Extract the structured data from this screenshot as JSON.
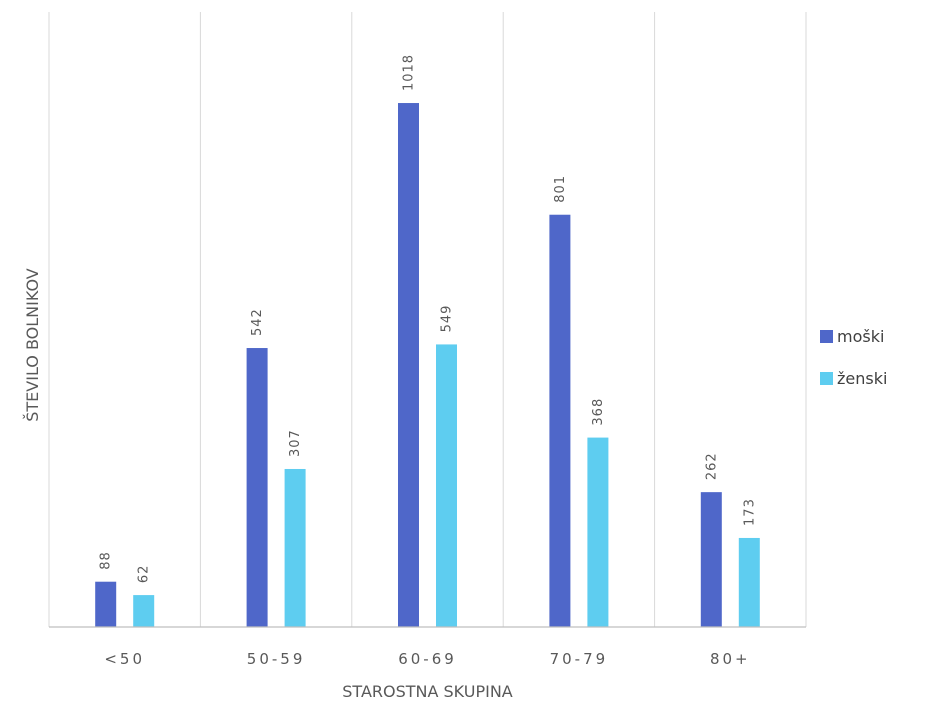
{
  "chart_data": {
    "type": "bar",
    "xlabel": "STAROSTNA SKUPINA",
    "ylabel": "ŠTEVILO BOLNIKOV",
    "categories": [
      "<50",
      "50-59",
      "60-69",
      "70-79",
      "80+"
    ],
    "series": [
      {
        "name": "moški",
        "color": "#4f67c9",
        "values": [
          88,
          542,
          1018,
          801,
          262
        ]
      },
      {
        "name": "ženski",
        "color": "#5ecdf0",
        "values": [
          62,
          307,
          549,
          368,
          173
        ]
      }
    ],
    "ylim": [
      0,
      1200
    ],
    "grid": "vertical category separators",
    "legend": "right",
    "data_labels": true
  }
}
